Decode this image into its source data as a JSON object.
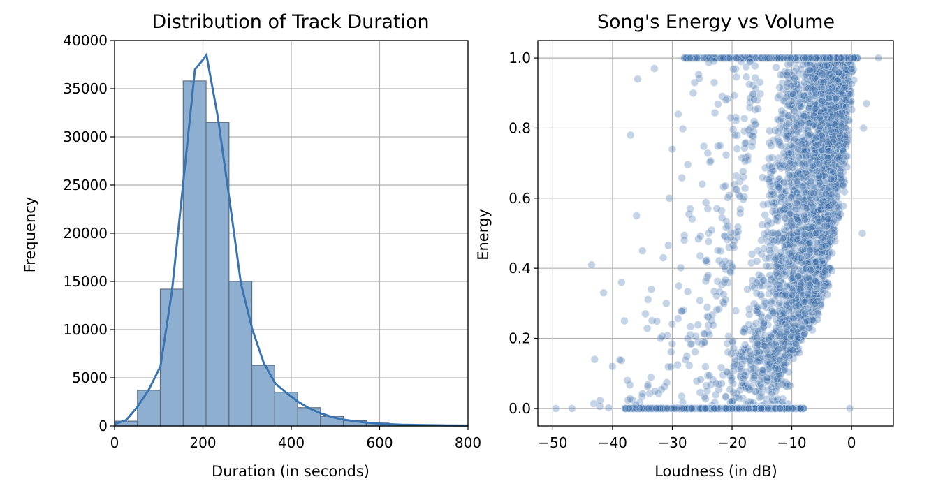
{
  "colors": {
    "bar_fill": "#8fafd0",
    "bar_edge": "#5c6f82",
    "kde_line": "#3a74b0",
    "scatter_fill": "#3a6ea8",
    "scatter_edge": "#d7e3ef",
    "grid": "#b0b0b0"
  },
  "chart_data": [
    {
      "type": "bar",
      "title": "Distribution of Track Duration",
      "xlabel": "Duration (in seconds)",
      "ylabel": "Frequency",
      "xlim": [
        0,
        800
      ],
      "ylim": [
        0,
        40000
      ],
      "xticks": [
        0,
        200,
        400,
        600,
        800
      ],
      "yticks": [
        0,
        5000,
        10000,
        15000,
        20000,
        25000,
        30000,
        35000,
        40000
      ],
      "grid": true,
      "bin_width": 51.8,
      "bins": [
        {
          "start": 0,
          "value": 500
        },
        {
          "start": 51.8,
          "value": 3700
        },
        {
          "start": 103.6,
          "value": 14200
        },
        {
          "start": 155.4,
          "value": 35800
        },
        {
          "start": 207.2,
          "value": 31500
        },
        {
          "start": 259.0,
          "value": 15000
        },
        {
          "start": 310.8,
          "value": 6300
        },
        {
          "start": 362.6,
          "value": 3500
        },
        {
          "start": 414.4,
          "value": 1900
        },
        {
          "start": 466.2,
          "value": 1000
        },
        {
          "start": 518.0,
          "value": 550
        },
        {
          "start": 569.8,
          "value": 300
        },
        {
          "start": 621.6,
          "value": 180
        },
        {
          "start": 673.4,
          "value": 120
        },
        {
          "start": 725.2,
          "value": 90
        },
        {
          "start": 777.0,
          "value": 60
        }
      ],
      "kde": {
        "x": [
          0,
          26,
          52,
          78,
          104,
          130,
          156,
          182,
          200,
          208,
          234,
          260,
          286,
          312,
          338,
          364,
          390,
          416,
          442,
          468,
          494,
          520,
          546,
          572,
          598,
          624,
          650,
          700,
          750,
          800
        ],
        "y": [
          200,
          600,
          2000,
          3800,
          6200,
          14000,
          25500,
          37000,
          38000,
          38500,
          32000,
          23500,
          14800,
          10000,
          6500,
          4400,
          3400,
          2500,
          1800,
          1300,
          900,
          650,
          480,
          350,
          250,
          180,
          130,
          90,
          60,
          40
        ]
      }
    },
    {
      "type": "scatter",
      "title": "Song's Energy vs Volume",
      "xlabel": "Loudness (in dB)",
      "ylabel": "Energy",
      "xlim": [
        -52.5,
        7
      ],
      "ylim": [
        -0.05,
        1.05
      ],
      "xticks": [
        -50,
        -40,
        -30,
        -20,
        -10,
        0
      ],
      "xtick_labels": [
        "−50",
        "−40",
        "−30",
        "−20",
        "−10",
        "0"
      ],
      "yticks": [
        0.0,
        0.2,
        0.4,
        0.6,
        0.8,
        1.0
      ],
      "ytick_labels": [
        "0.0",
        "0.2",
        "0.4",
        "0.6",
        "0.8",
        "1.0"
      ],
      "grid": true,
      "point_alpha": 0.3,
      "x_range": [
        -49.5,
        4.5
      ],
      "y_range": [
        0,
        1
      ],
      "dense_band": [
        {
          "energy": 0.0,
          "loudness_min": -35,
          "loudness_max": -10
        },
        {
          "energy": 0.1,
          "loudness_min": -28,
          "loudness_max": -11
        },
        {
          "energy": 0.2,
          "loudness_min": -24,
          "loudness_max": -8
        },
        {
          "energy": 0.3,
          "loudness_min": -21,
          "loudness_max": -5
        },
        {
          "energy": 0.4,
          "loudness_min": -20,
          "loudness_max": -4
        },
        {
          "energy": 0.5,
          "loudness_min": -19,
          "loudness_max": -3
        },
        {
          "energy": 0.6,
          "loudness_min": -18,
          "loudness_max": -2
        },
        {
          "energy": 0.7,
          "loudness_min": -17,
          "loudness_max": -1.5
        },
        {
          "energy": 0.8,
          "loudness_min": -16,
          "loudness_max": -1
        },
        {
          "energy": 0.9,
          "loudness_min": -15,
          "loudness_max": -0.5
        },
        {
          "energy": 1.0,
          "loudness_min": -15,
          "loudness_max": 0
        }
      ],
      "outliers": [
        [
          -43.5,
          0.41
        ],
        [
          -49.5,
          0.0
        ],
        [
          -46.8,
          0.0
        ],
        [
          -43.0,
          0.14
        ],
        [
          -41.5,
          0.33
        ],
        [
          -38.5,
          0.36
        ],
        [
          -37.0,
          0.78
        ],
        [
          -35.8,
          0.94
        ],
        [
          -33.0,
          0.97
        ],
        [
          -36.0,
          0.55
        ],
        [
          -35.0,
          0.45
        ],
        [
          -31.5,
          0.43
        ],
        [
          -30.5,
          0.6
        ],
        [
          -27.0,
          0.57
        ],
        [
          -29.0,
          0.84
        ],
        [
          -25.0,
          0.64
        ],
        [
          -22.0,
          0.75
        ],
        [
          -24.0,
          0.38
        ],
        [
          -38.0,
          0.25
        ],
        [
          -40.0,
          0.12
        ],
        [
          -33.5,
          0.34
        ],
        [
          -30.0,
          0.74
        ],
        [
          -26.5,
          0.9
        ],
        [
          -21.0,
          0.88
        ],
        [
          -34.5,
          0.27
        ],
        [
          -32.0,
          0.2
        ],
        [
          -37.5,
          0.08
        ],
        [
          -28.0,
          0.48
        ],
        [
          -23.0,
          0.93
        ],
        [
          -19.5,
          0.78
        ],
        [
          4.5,
          1.0
        ],
        [
          2.5,
          0.87
        ],
        [
          2.0,
          0.8
        ],
        [
          1.8,
          0.5
        ],
        [
          -0.3,
          0.0
        ],
        [
          -18.0,
          0.0
        ],
        [
          -12.0,
          0.0
        ],
        [
          -8.0,
          0.0
        ],
        [
          -14.0,
          0.0
        ],
        [
          -10.5,
          0.0
        ]
      ]
    }
  ]
}
